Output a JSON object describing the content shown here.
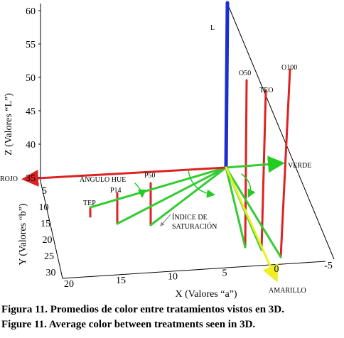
{
  "chart_data": {
    "type": "3d-figure",
    "zlabel": "Z (Valores “L”)",
    "ylabel": "Y (Valores “b”)",
    "xlabel": "X (Valores “a”)",
    "zticks": [
      60,
      55,
      50,
      45,
      40,
      35
    ],
    "yticks": [
      5,
      10,
      15,
      20,
      25,
      30
    ],
    "xticks": [
      20,
      15,
      10,
      5,
      0,
      -5
    ],
    "annotations": {
      "L": "L",
      "O50": "O50",
      "TEO": "TEO",
      "O100": "O100",
      "ROJO": "ROJO",
      "VERDE": "VERDE",
      "hue": "ÁNGULO HUE",
      "P50": "P50",
      "P14": "P14",
      "TEP": "TEP",
      "sat1": "ÍNDICE DE",
      "sat2": "SATURACIÓN",
      "AMARILLO": "AMARILLO"
    },
    "caption": [
      "Figura 11. Promedios de color entre tratamientos vistos en 3D.",
      "Figure 11. Average color between treatments seen in 3D."
    ]
  }
}
